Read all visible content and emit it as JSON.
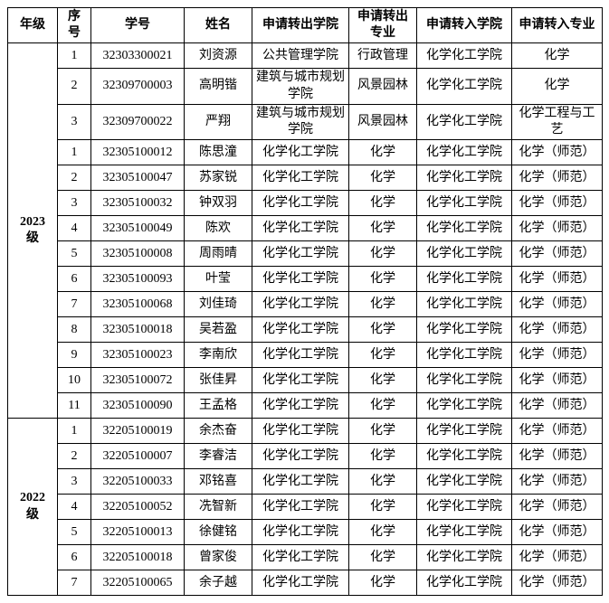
{
  "page": {
    "background_color": "#ffffff",
    "border_color": "#000000",
    "text_color": "#000000"
  },
  "table": {
    "headers": [
      "年级",
      "序\n号",
      "学号",
      "姓名",
      "申请转出学院",
      "申请转出\n专业",
      "申请转入学院",
      "申请转入专业"
    ],
    "column_keys": [
      "no",
      "student_id",
      "name",
      "out_college",
      "out_major",
      "in_college",
      "in_major"
    ],
    "groups": [
      {
        "grade": "2023",
        "grade_suffix": "级",
        "rows": [
          {
            "no": "1",
            "student_id": "32303300021",
            "name": "刘资源",
            "out_college": "公共管理学院",
            "out_major": "行政管理",
            "in_college": "化学化工学院",
            "in_major": "化学"
          },
          {
            "no": "2",
            "student_id": "32309700003",
            "name": "高明锴",
            "out_college": "建筑与城市规划学院",
            "out_major": "风景园林",
            "in_college": "化学化工学院",
            "in_major": "化学"
          },
          {
            "no": "3",
            "student_id": "32309700022",
            "name": "严翔",
            "out_college": "建筑与城市规划学院",
            "out_major": "风景园林",
            "in_college": "化学化工学院",
            "in_major": "化学工程与工艺"
          },
          {
            "no": "1",
            "student_id": "32305100012",
            "name": "陈思潼",
            "out_college": "化学化工学院",
            "out_major": "化学",
            "in_college": "化学化工学院",
            "in_major": "化学（师范）"
          },
          {
            "no": "2",
            "student_id": "32305100047",
            "name": "苏家锐",
            "out_college": "化学化工学院",
            "out_major": "化学",
            "in_college": "化学化工学院",
            "in_major": "化学（师范）"
          },
          {
            "no": "3",
            "student_id": "32305100032",
            "name": "钟双羽",
            "out_college": "化学化工学院",
            "out_major": "化学",
            "in_college": "化学化工学院",
            "in_major": "化学（师范）"
          },
          {
            "no": "4",
            "student_id": "32305100049",
            "name": "陈欢",
            "out_college": "化学化工学院",
            "out_major": "化学",
            "in_college": "化学化工学院",
            "in_major": "化学（师范）"
          },
          {
            "no": "5",
            "student_id": "32305100008",
            "name": "周雨晴",
            "out_college": "化学化工学院",
            "out_major": "化学",
            "in_college": "化学化工学院",
            "in_major": "化学（师范）"
          },
          {
            "no": "6",
            "student_id": "32305100093",
            "name": "叶莹",
            "out_college": "化学化工学院",
            "out_major": "化学",
            "in_college": "化学化工学院",
            "in_major": "化学（师范）"
          },
          {
            "no": "7",
            "student_id": "32305100068",
            "name": "刘佳琦",
            "out_college": "化学化工学院",
            "out_major": "化学",
            "in_college": "化学化工学院",
            "in_major": "化学（师范）"
          },
          {
            "no": "8",
            "student_id": "32305100018",
            "name": "吴若盈",
            "out_college": "化学化工学院",
            "out_major": "化学",
            "in_college": "化学化工学院",
            "in_major": "化学（师范）"
          },
          {
            "no": "9",
            "student_id": "32305100023",
            "name": "李南欣",
            "out_college": "化学化工学院",
            "out_major": "化学",
            "in_college": "化学化工学院",
            "in_major": "化学（师范）"
          },
          {
            "no": "10",
            "student_id": "32305100072",
            "name": "张佳昇",
            "out_college": "化学化工学院",
            "out_major": "化学",
            "in_college": "化学化工学院",
            "in_major": "化学（师范）"
          },
          {
            "no": "11",
            "student_id": "32305100090",
            "name": "王孟格",
            "out_college": "化学化工学院",
            "out_major": "化学",
            "in_college": "化学化工学院",
            "in_major": "化学（师范）"
          }
        ]
      },
      {
        "grade": "2022",
        "grade_suffix": "级",
        "rows": [
          {
            "no": "1",
            "student_id": "32205100019",
            "name": "余杰奋",
            "out_college": "化学化工学院",
            "out_major": "化学",
            "in_college": "化学化工学院",
            "in_major": "化学（师范）"
          },
          {
            "no": "2",
            "student_id": "32205100007",
            "name": "李睿洁",
            "out_college": "化学化工学院",
            "out_major": "化学",
            "in_college": "化学化工学院",
            "in_major": "化学（师范）"
          },
          {
            "no": "3",
            "student_id": "32205100033",
            "name": "邓铭喜",
            "out_college": "化学化工学院",
            "out_major": "化学",
            "in_college": "化学化工学院",
            "in_major": "化学（师范）"
          },
          {
            "no": "4",
            "student_id": "32205100052",
            "name": "冼智新",
            "out_college": "化学化工学院",
            "out_major": "化学",
            "in_college": "化学化工学院",
            "in_major": "化学（师范）"
          },
          {
            "no": "5",
            "student_id": "32205100013",
            "name": "徐健铭",
            "out_college": "化学化工学院",
            "out_major": "化学",
            "in_college": "化学化工学院",
            "in_major": "化学（师范）"
          },
          {
            "no": "6",
            "student_id": "32205100018",
            "name": "曾家俊",
            "out_college": "化学化工学院",
            "out_major": "化学",
            "in_college": "化学化工学院",
            "in_major": "化学（师范）"
          },
          {
            "no": "7",
            "student_id": "32205100065",
            "name": "余子越",
            "out_college": "化学化工学院",
            "out_major": "化学",
            "in_college": "化学化工学院",
            "in_major": "化学（师范）"
          }
        ]
      }
    ]
  }
}
